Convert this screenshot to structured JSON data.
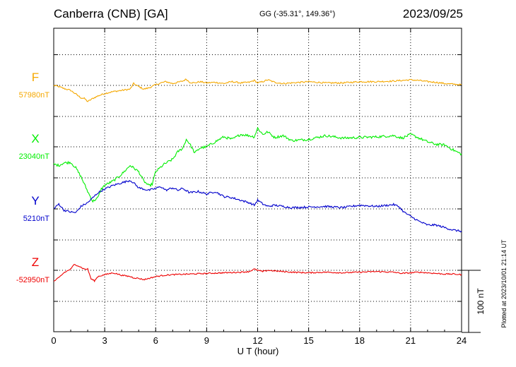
{
  "header": {
    "station": "Canberra (CNB)  [GA]",
    "coords": "GG (-35.31°, 149.36°)",
    "date": "2023/09/25"
  },
  "footer": {
    "plotted": "Plotted at 2023/10/01 21:14 UT"
  },
  "chart_data": {
    "type": "line",
    "xlabel": "U T (hour)",
    "xlim": [
      0,
      24
    ],
    "xticks": [
      "0",
      "3",
      "6",
      "9",
      "12",
      "15",
      "18",
      "21",
      "24"
    ],
    "grid": true,
    "scale_bar_label": "100 nT",
    "scale_bar_value_nT": 100,
    "series": [
      {
        "name": "F",
        "baseline_label": "57980nT",
        "baseline_nT": 57980,
        "color": "#f5a800",
        "x": [
          0,
          0.3,
          0.6,
          1,
          1.3,
          1.6,
          1.8,
          2,
          2.3,
          2.6,
          3,
          3.5,
          4,
          4.5,
          4.7,
          5,
          5.3,
          5.6,
          6,
          6.3,
          6.6,
          7,
          7.3,
          7.6,
          7.8,
          8,
          8.3,
          8.6,
          9,
          9.5,
          10,
          10.5,
          11,
          11.5,
          11.8,
          12,
          12.3,
          12.6,
          13,
          13.5,
          14,
          15,
          16,
          17,
          18,
          19,
          20,
          20.5,
          21,
          21.5,
          22,
          22.5,
          23,
          23.5,
          24
        ],
        "y": [
          0,
          -2,
          -5,
          -8,
          -14,
          -20,
          -21,
          -26,
          -21,
          -17,
          -13,
          -10,
          -8,
          -6,
          3,
          -2,
          -6,
          -4,
          1,
          4,
          6,
          3,
          5,
          7,
          10,
          5,
          4,
          6,
          4,
          5,
          3,
          6,
          4,
          5,
          8,
          4,
          6,
          9,
          5,
          3,
          4,
          6,
          4,
          4,
          6,
          6,
          7,
          8,
          9,
          8,
          6,
          5,
          3,
          2,
          1
        ]
      },
      {
        "name": "X",
        "baseline_label": "23040nT",
        "baseline_nT": 23040,
        "color": "#00ee00",
        "x": [
          0,
          0.3,
          0.6,
          1,
          1.3,
          1.6,
          2,
          2.3,
          2.6,
          2.8,
          3,
          3.5,
          4,
          4.5,
          5,
          5.3,
          5.6,
          5.8,
          6,
          6.5,
          7,
          7.3,
          7.6,
          7.8,
          8,
          8.3,
          8.6,
          9,
          9.5,
          10,
          10.5,
          11,
          11.5,
          11.8,
          12,
          12.3,
          12.6,
          13,
          13.5,
          14,
          15,
          16,
          17,
          18,
          19,
          20,
          20.5,
          21,
          21.5,
          22,
          22.5,
          23,
          23.5,
          24
        ],
        "y": [
          -28,
          -30,
          -26,
          -25,
          -34,
          -48,
          -72,
          -88,
          -82,
          -68,
          -62,
          -55,
          -44,
          -30,
          -40,
          -55,
          -63,
          -60,
          -40,
          -28,
          -20,
          -8,
          -2,
          12,
          5,
          -10,
          -2,
          0,
          8,
          16,
          12,
          20,
          18,
          16,
          30,
          20,
          24,
          15,
          18,
          10,
          12,
          18,
          14,
          15,
          16,
          18,
          14,
          20,
          14,
          8,
          4,
          3,
          -5,
          -12
        ]
      },
      {
        "name": "Y",
        "baseline_label": "5210nT",
        "baseline_nT": 5210,
        "color": "#0000cc",
        "x": [
          0,
          0.3,
          0.6,
          1,
          1.3,
          1.6,
          2,
          2.3,
          2.6,
          3,
          3.5,
          4,
          4.5,
          4.7,
          5,
          5.3,
          5.6,
          6,
          6.3,
          6.6,
          7,
          7.3,
          7.6,
          8,
          8.5,
          9,
          9.5,
          10,
          10.5,
          11,
          11.5,
          11.8,
          12,
          12.3,
          12.6,
          13,
          13.5,
          14,
          15,
          16,
          17,
          18,
          19,
          20,
          20.3,
          20.6,
          21,
          21.5,
          22,
          22.5,
          23,
          23.5,
          24
        ],
        "y": [
          0,
          8,
          -2,
          -5,
          -6,
          4,
          10,
          18,
          26,
          32,
          38,
          42,
          46,
          42,
          34,
          32,
          30,
          33,
          36,
          30,
          34,
          30,
          33,
          26,
          28,
          24,
          28,
          20,
          18,
          14,
          10,
          6,
          14,
          8,
          4,
          6,
          4,
          2,
          3,
          4,
          2,
          6,
          4,
          7,
          4,
          -5,
          -12,
          -20,
          -26,
          -26,
          -30,
          -34,
          -36
        ]
      },
      {
        "name": "Z",
        "baseline_label": "-52950nT",
        "baseline_nT": -52950,
        "color": "#ee0000",
        "x": [
          0,
          0.3,
          0.6,
          1,
          1.2,
          1.4,
          1.6,
          1.8,
          2,
          2.2,
          2.4,
          2.6,
          3,
          3.5,
          4,
          4.5,
          4.7,
          5,
          5.3,
          5.6,
          6,
          6.5,
          7,
          8,
          9,
          10,
          11,
          11.5,
          11.8,
          12,
          12.3,
          12.6,
          13,
          13.5,
          14,
          15,
          16,
          17,
          18,
          19,
          20,
          20.5,
          21,
          21.5,
          22,
          22.5,
          23,
          23.5,
          24
        ],
        "y": [
          -18,
          -12,
          -4,
          2,
          9,
          8,
          5,
          2,
          2,
          -14,
          -17,
          -10,
          -7,
          -4,
          -8,
          -10,
          -12,
          -13,
          -15,
          -13,
          -10,
          -8,
          -7,
          -6,
          -5,
          -4,
          -3,
          -2,
          2,
          0,
          -2,
          0,
          -1,
          -2,
          -3,
          -4,
          -3,
          -4,
          -3,
          -2,
          -3,
          -5,
          -4,
          -3,
          -4,
          -5,
          -6,
          -6,
          -7
        ]
      }
    ]
  }
}
